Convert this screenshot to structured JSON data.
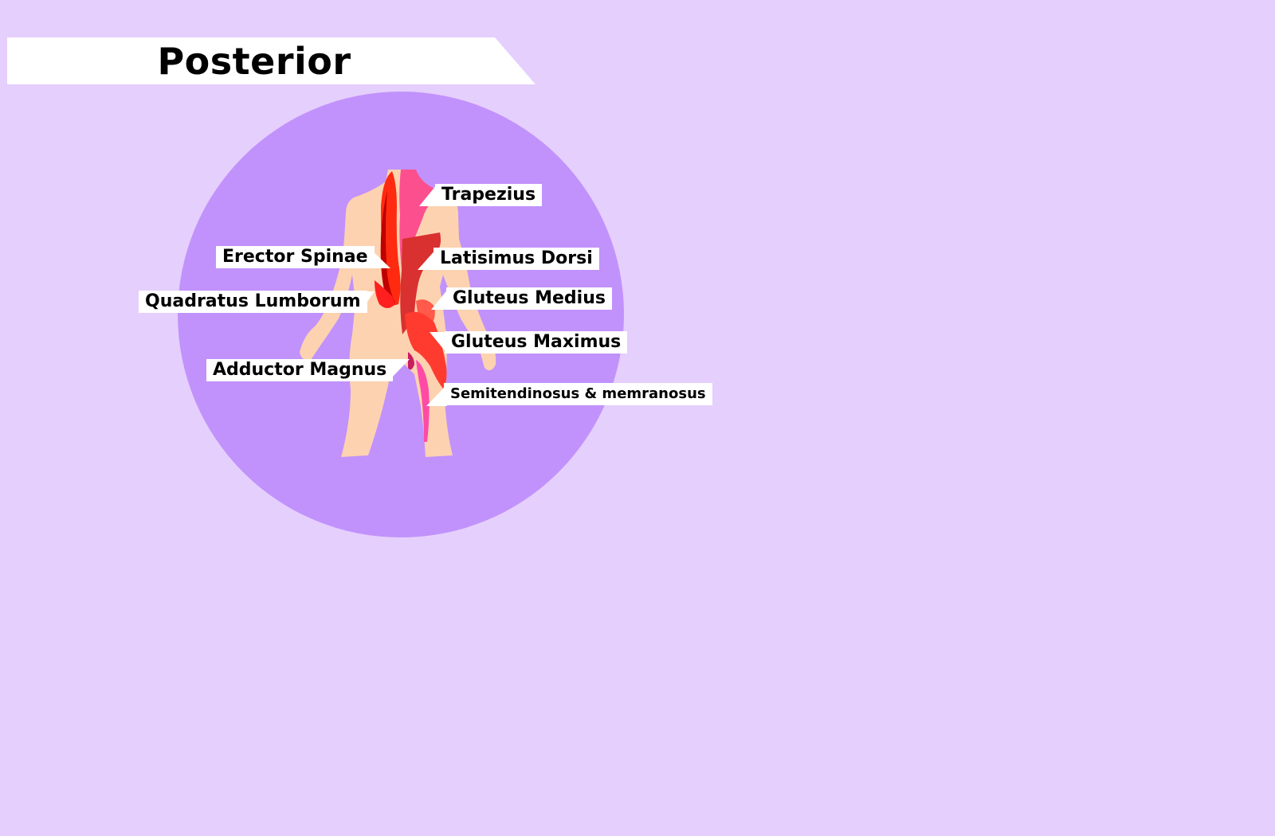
{
  "title": "Posterior",
  "colors": {
    "page_background": "#e5cffd",
    "circle": "#c192fb",
    "skin": "#fdd2b0",
    "trapezius": "#fc4f8e",
    "erector_spinae": "#ff2a10",
    "latissimus": "#d93030",
    "gluteus": "#ff3b30",
    "semitendinosus": "#ff4aa6",
    "adductor": "#c81e60"
  },
  "labels": {
    "trapezius": "Trapezius",
    "erector_spinae": "Erector Spinae",
    "latissimus_dorsi": "Latisimus Dorsi",
    "quadratus_lumborum": "Quadratus Lumborum",
    "gluteus_medius": "Gluteus Medius",
    "gluteus_maximus": "Gluteus Maximus",
    "adductor_magnus": "Adductor Magnus",
    "semitendinosus": "Semitendinosus & memranosus"
  }
}
